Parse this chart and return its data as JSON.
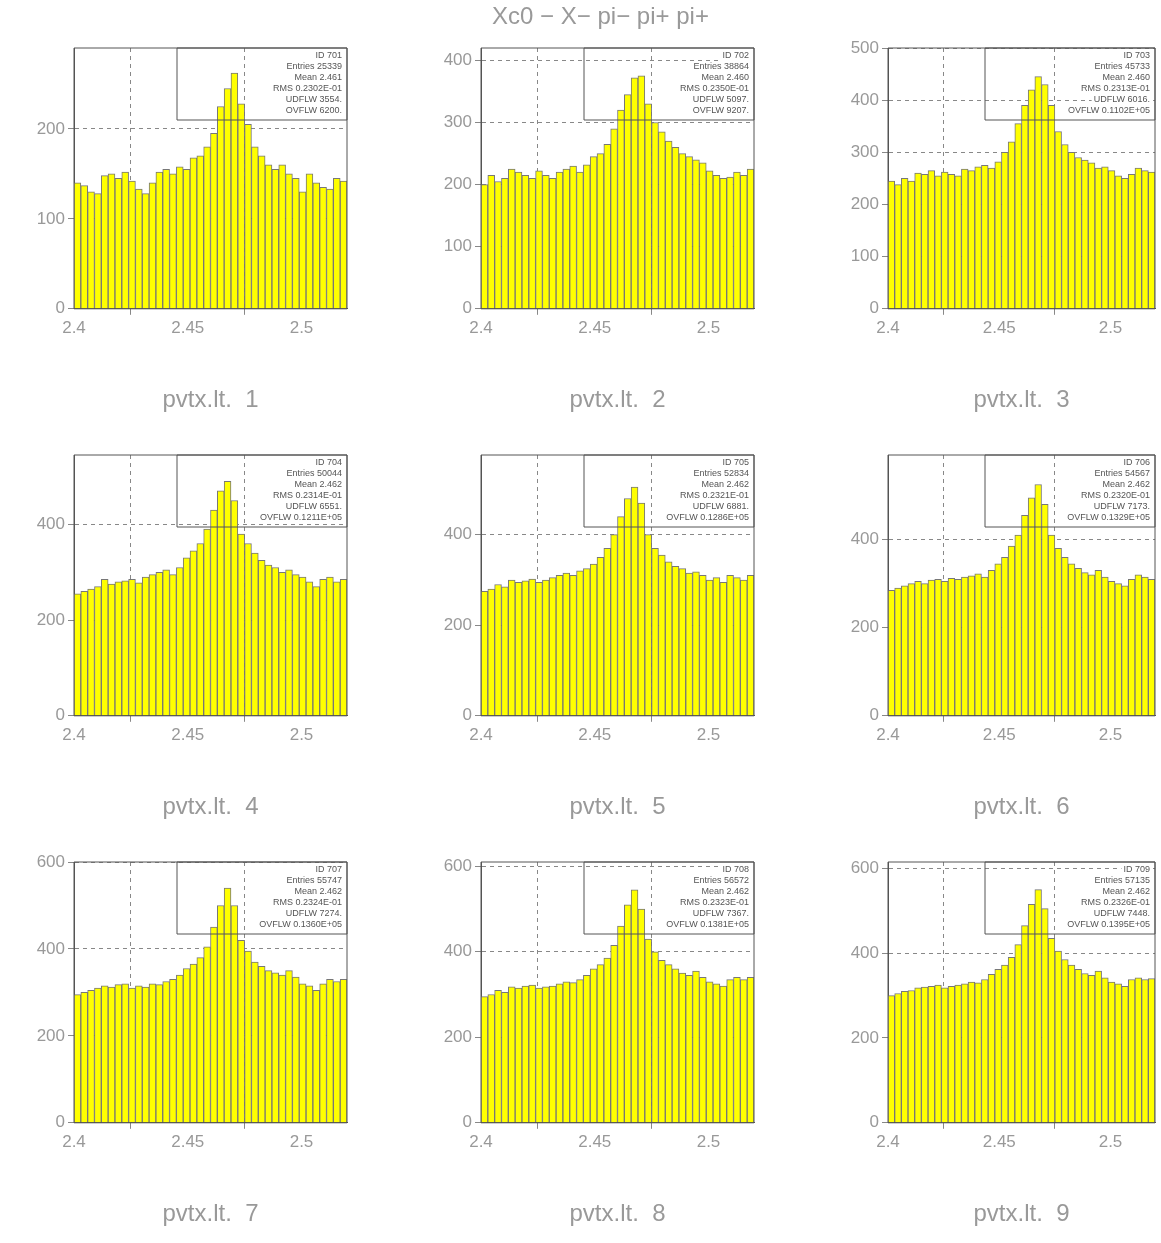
{
  "chart_data": [
    {
      "type": "histogram",
      "xlabel": "pvtx.lt.  1",
      "color": "#ffff00",
      "bins": [
        2.4,
        2.403,
        2.406,
        2.409,
        2.412,
        2.415,
        2.418,
        2.421,
        2.424,
        2.427,
        2.43,
        2.433,
        2.436,
        2.439,
        2.442,
        2.445,
        2.448,
        2.451,
        2.454,
        2.457,
        2.46,
        2.463,
        2.466,
        2.469,
        2.472,
        2.475,
        2.478,
        2.481,
        2.484,
        2.487,
        2.49,
        2.493,
        2.496,
        2.499,
        2.502,
        2.505,
        2.508,
        2.511,
        2.514,
        2.517,
        2.52
      ],
      "values": [
        140,
        137,
        130,
        128,
        148,
        150,
        145,
        152,
        142,
        133,
        128,
        140,
        152,
        155,
        150,
        158,
        155,
        168,
        170,
        180,
        195,
        225,
        245,
        262,
        228,
        205,
        180,
        170,
        160,
        155,
        160,
        150,
        145,
        130,
        150,
        140,
        135,
        133,
        145,
        142
      ],
      "xlim": [
        2.4,
        2.52
      ],
      "xticks": [
        2.4,
        2.45,
        2.5
      ],
      "ylim": [
        0,
        290
      ],
      "yticks": [
        0,
        100,
        200
      ],
      "grid": true,
      "annotations": [
        "ID 701",
        "Entries 25339",
        "Mean 2.461",
        "RMS 0.2302E-01",
        "UDFLW 3554.",
        "OVFLW 6200."
      ]
    },
    {
      "type": "histogram",
      "title": "Xc0 − X− pi− pi+ pi+",
      "xlabel": "pvtx.lt.  2",
      "color": "#ffff00",
      "bins": [
        2.4,
        2.403,
        2.406,
        2.409,
        2.412,
        2.415,
        2.418,
        2.421,
        2.424,
        2.427,
        2.43,
        2.433,
        2.436,
        2.439,
        2.442,
        2.445,
        2.448,
        2.451,
        2.454,
        2.457,
        2.46,
        2.463,
        2.466,
        2.469,
        2.472,
        2.475,
        2.478,
        2.481,
        2.484,
        2.487,
        2.49,
        2.493,
        2.496,
        2.499,
        2.502,
        2.505,
        2.508,
        2.511,
        2.514,
        2.517,
        2.52
      ],
      "values": [
        200,
        215,
        205,
        210,
        225,
        220,
        215,
        210,
        222,
        215,
        210,
        220,
        225,
        230,
        220,
        232,
        245,
        250,
        265,
        290,
        320,
        345,
        372,
        375,
        330,
        300,
        285,
        270,
        260,
        250,
        245,
        240,
        235,
        222,
        215,
        210,
        212,
        220,
        215,
        225
      ],
      "xlim": [
        2.4,
        2.52
      ],
      "xticks": [
        2.4,
        2.45,
        2.5
      ],
      "ylim": [
        0,
        420
      ],
      "yticks": [
        0,
        100,
        200,
        300,
        400
      ],
      "grid": true,
      "annotations": [
        "ID 702",
        "Entries 38864",
        "Mean 2.460",
        "RMS 0.2350E-01",
        "UDFLW 5097.",
        "OVFLW 9207."
      ]
    },
    {
      "type": "histogram",
      "xlabel": "pvtx.lt.  3",
      "color": "#ffff00",
      "bins": [
        2.4,
        2.403,
        2.406,
        2.409,
        2.412,
        2.415,
        2.418,
        2.421,
        2.424,
        2.427,
        2.43,
        2.433,
        2.436,
        2.439,
        2.442,
        2.445,
        2.448,
        2.451,
        2.454,
        2.457,
        2.46,
        2.463,
        2.466,
        2.469,
        2.472,
        2.475,
        2.478,
        2.481,
        2.484,
        2.487,
        2.49,
        2.493,
        2.496,
        2.499,
        2.502,
        2.505,
        2.508,
        2.511,
        2.514,
        2.517,
        2.52
      ],
      "values": [
        245,
        238,
        250,
        245,
        260,
        258,
        265,
        255,
        262,
        258,
        255,
        268,
        265,
        272,
        275,
        270,
        282,
        300,
        320,
        355,
        390,
        420,
        445,
        430,
        390,
        340,
        315,
        300,
        290,
        285,
        280,
        270,
        272,
        265,
        255,
        250,
        258,
        270,
        265,
        262
      ],
      "xlim": [
        2.4,
        2.52
      ],
      "xticks": [
        2.4,
        2.45,
        2.5
      ],
      "ylim": [
        0,
        500
      ],
      "yticks": [
        0,
        100,
        200,
        300,
        400,
        500
      ],
      "grid": true,
      "annotations": [
        "ID 703",
        "Entries 45733",
        "Mean 2.460",
        "RMS 0.2313E-01",
        "UDFLW 6016.",
        "OVFLW 0.1102E+05"
      ]
    },
    {
      "type": "histogram",
      "xlabel": "pvtx.lt.  4",
      "color": "#ffff00",
      "bins": [
        2.4,
        2.403,
        2.406,
        2.409,
        2.412,
        2.415,
        2.418,
        2.421,
        2.424,
        2.427,
        2.43,
        2.433,
        2.436,
        2.439,
        2.442,
        2.445,
        2.448,
        2.451,
        2.454,
        2.457,
        2.46,
        2.463,
        2.466,
        2.469,
        2.472,
        2.475,
        2.478,
        2.481,
        2.484,
        2.487,
        2.49,
        2.493,
        2.496,
        2.499,
        2.502,
        2.505,
        2.508,
        2.511,
        2.514,
        2.517,
        2.52
      ],
      "values": [
        255,
        260,
        265,
        270,
        285,
        275,
        280,
        282,
        285,
        278,
        290,
        295,
        300,
        305,
        295,
        310,
        330,
        345,
        360,
        390,
        430,
        470,
        490,
        450,
        380,
        360,
        340,
        325,
        315,
        310,
        300,
        305,
        295,
        290,
        280,
        270,
        285,
        290,
        280,
        285
      ],
      "xlim": [
        2.4,
        2.52
      ],
      "xticks": [
        2.4,
        2.45,
        2.5
      ],
      "ylim": [
        0,
        545
      ],
      "yticks": [
        0,
        200,
        400
      ],
      "grid": true,
      "annotations": [
        "ID 704",
        "Entries 50044",
        "Mean 2.462",
        "RMS 0.2314E-01",
        "UDFLW 6551.",
        "OVFLW 0.1211E+05"
      ]
    },
    {
      "type": "histogram",
      "xlabel": "pvtx.lt.  5",
      "color": "#ffff00",
      "bins": [
        2.4,
        2.403,
        2.406,
        2.409,
        2.412,
        2.415,
        2.418,
        2.421,
        2.424,
        2.427,
        2.43,
        2.433,
        2.436,
        2.439,
        2.442,
        2.445,
        2.448,
        2.451,
        2.454,
        2.457,
        2.46,
        2.463,
        2.466,
        2.469,
        2.472,
        2.475,
        2.478,
        2.481,
        2.484,
        2.487,
        2.49,
        2.493,
        2.496,
        2.499,
        2.502,
        2.505,
        2.508,
        2.511,
        2.514,
        2.517,
        2.52
      ],
      "values": [
        275,
        280,
        290,
        285,
        300,
        295,
        298,
        302,
        295,
        300,
        305,
        310,
        315,
        310,
        320,
        325,
        335,
        350,
        370,
        400,
        440,
        480,
        505,
        470,
        400,
        370,
        355,
        340,
        330,
        325,
        315,
        318,
        310,
        300,
        305,
        295,
        310,
        305,
        300,
        310
      ],
      "xlim": [
        2.4,
        2.52
      ],
      "xticks": [
        2.4,
        2.45,
        2.5
      ],
      "ylim": [
        0,
        576
      ],
      "yticks": [
        0,
        200,
        400
      ],
      "grid": true,
      "annotations": [
        "ID 705",
        "Entries 52834",
        "Mean 2.462",
        "RMS 0.2321E-01",
        "UDFLW 6881.",
        "OVFLW 0.1286E+05"
      ]
    },
    {
      "type": "histogram",
      "xlabel": "pvtx.lt.  6",
      "color": "#ffff00",
      "bins": [
        2.4,
        2.403,
        2.406,
        2.409,
        2.412,
        2.415,
        2.418,
        2.421,
        2.424,
        2.427,
        2.43,
        2.433,
        2.436,
        2.439,
        2.442,
        2.445,
        2.448,
        2.451,
        2.454,
        2.457,
        2.46,
        2.463,
        2.466,
        2.469,
        2.472,
        2.475,
        2.478,
        2.481,
        2.484,
        2.487,
        2.49,
        2.493,
        2.496,
        2.499,
        2.502,
        2.505,
        2.508,
        2.511,
        2.514,
        2.517,
        2.52
      ],
      "values": [
        285,
        290,
        295,
        300,
        305,
        300,
        308,
        310,
        305,
        312,
        310,
        315,
        318,
        322,
        315,
        330,
        345,
        360,
        385,
        410,
        455,
        495,
        525,
        480,
        410,
        380,
        360,
        345,
        335,
        325,
        320,
        330,
        315,
        305,
        300,
        295,
        310,
        320,
        315,
        310
      ],
      "xlim": [
        2.4,
        2.52
      ],
      "xticks": [
        2.4,
        2.45,
        2.5
      ],
      "ylim": [
        0,
        592
      ],
      "yticks": [
        0,
        200,
        400
      ],
      "grid": true,
      "annotations": [
        "ID 706",
        "Entries 54567",
        "Mean 2.462",
        "RMS 0.2320E-01",
        "UDFLW 7173.",
        "OVFLW 0.1329E+05"
      ]
    },
    {
      "type": "histogram",
      "xlabel": "pvtx.lt.  7",
      "color": "#ffff00",
      "bins": [
        2.4,
        2.403,
        2.406,
        2.409,
        2.412,
        2.415,
        2.418,
        2.421,
        2.424,
        2.427,
        2.43,
        2.433,
        2.436,
        2.439,
        2.442,
        2.445,
        2.448,
        2.451,
        2.454,
        2.457,
        2.46,
        2.463,
        2.466,
        2.469,
        2.472,
        2.475,
        2.478,
        2.481,
        2.484,
        2.487,
        2.49,
        2.493,
        2.496,
        2.499,
        2.502,
        2.505,
        2.508,
        2.511,
        2.514,
        2.517,
        2.52
      ],
      "values": [
        295,
        300,
        305,
        310,
        315,
        312,
        318,
        320,
        310,
        315,
        312,
        320,
        318,
        325,
        330,
        340,
        355,
        365,
        380,
        405,
        450,
        500,
        540,
        500,
        420,
        395,
        370,
        360,
        350,
        345,
        340,
        350,
        335,
        320,
        315,
        305,
        320,
        330,
        325,
        330
      ],
      "xlim": [
        2.4,
        2.52
      ],
      "xticks": [
        2.4,
        2.45,
        2.5
      ],
      "ylim": [
        0,
        600
      ],
      "yticks": [
        0,
        200,
        400,
        600
      ],
      "grid": true,
      "annotations": [
        "ID 707",
        "Entries 55747",
        "Mean 2.462",
        "RMS 0.2324E-01",
        "UDFLW 7274.",
        "OVFLW 0.1360E+05"
      ]
    },
    {
      "type": "histogram",
      "xlabel": "pvtx.lt.  8",
      "color": "#ffff00",
      "bins": [
        2.4,
        2.403,
        2.406,
        2.409,
        2.412,
        2.415,
        2.418,
        2.421,
        2.424,
        2.427,
        2.43,
        2.433,
        2.436,
        2.439,
        2.442,
        2.445,
        2.448,
        2.451,
        2.454,
        2.457,
        2.46,
        2.463,
        2.466,
        2.469,
        2.472,
        2.475,
        2.478,
        2.481,
        2.484,
        2.487,
        2.49,
        2.493,
        2.496,
        2.499,
        2.502,
        2.505,
        2.508,
        2.511,
        2.514,
        2.517,
        2.52
      ],
      "values": [
        295,
        300,
        310,
        305,
        318,
        315,
        320,
        322,
        315,
        318,
        320,
        325,
        330,
        328,
        335,
        345,
        360,
        370,
        385,
        415,
        460,
        510,
        545,
        500,
        430,
        400,
        380,
        370,
        360,
        350,
        345,
        355,
        340,
        330,
        325,
        320,
        335,
        340,
        335,
        340
      ],
      "xlim": [
        2.4,
        2.52
      ],
      "xticks": [
        2.4,
        2.45,
        2.5
      ],
      "ylim": [
        0,
        610
      ],
      "yticks": [
        0,
        200,
        400,
        600
      ],
      "grid": true,
      "annotations": [
        "ID 708",
        "Entries 56572",
        "Mean 2.462",
        "RMS 0.2323E-01",
        "UDFLW 7367.",
        "OVFLW 0.1381E+05"
      ]
    },
    {
      "type": "histogram",
      "xlabel": "pvtx.lt.  9",
      "color": "#ffff00",
      "bins": [
        2.4,
        2.403,
        2.406,
        2.409,
        2.412,
        2.415,
        2.418,
        2.421,
        2.424,
        2.427,
        2.43,
        2.433,
        2.436,
        2.439,
        2.442,
        2.445,
        2.448,
        2.451,
        2.454,
        2.457,
        2.46,
        2.463,
        2.466,
        2.469,
        2.472,
        2.475,
        2.478,
        2.481,
        2.484,
        2.487,
        2.49,
        2.493,
        2.496,
        2.499,
        2.502,
        2.505,
        2.508,
        2.511,
        2.514,
        2.517,
        2.52
      ],
      "values": [
        300,
        305,
        310,
        312,
        318,
        320,
        322,
        325,
        318,
        322,
        325,
        328,
        332,
        330,
        338,
        350,
        362,
        372,
        390,
        420,
        465,
        515,
        550,
        505,
        435,
        405,
        385,
        372,
        362,
        352,
        348,
        358,
        342,
        332,
        328,
        322,
        338,
        342,
        338,
        340
      ],
      "xlim": [
        2.4,
        2.52
      ],
      "xticks": [
        2.4,
        2.45,
        2.5
      ],
      "ylim": [
        0,
        615
      ],
      "yticks": [
        0,
        200,
        400,
        600
      ],
      "grid": true,
      "annotations": [
        "ID 709",
        "Entries 57135",
        "Mean 2.462",
        "RMS 0.2326E-01",
        "UDFLW 7448.",
        "OVFLW 0.1395E+05"
      ]
    }
  ]
}
